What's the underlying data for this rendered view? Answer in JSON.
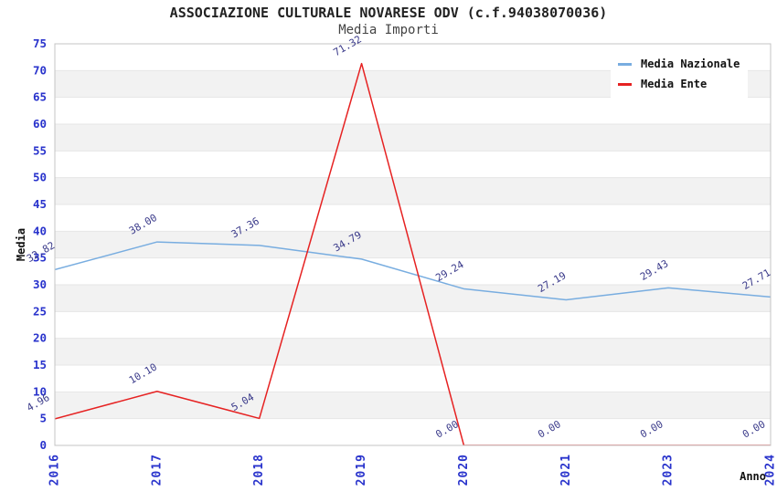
{
  "header": {
    "title": "ASSOCIAZIONE CULTURALE NOVARESE ODV (c.f.94038070036)",
    "subtitle": "Media Importi"
  },
  "chart_data": {
    "type": "line",
    "categories": [
      "2016",
      "2017",
      "2018",
      "2019",
      "2020",
      "2021",
      "2023",
      "2024"
    ],
    "series": [
      {
        "name": "Media Nazionale",
        "color": "#78ade0",
        "values": [
          32.82,
          38.0,
          37.36,
          34.79,
          29.24,
          27.19,
          29.43,
          27.71
        ],
        "point_labels": [
          "32.82",
          "38.00",
          "37.36",
          "34.79",
          "29.24",
          "27.19",
          "29.43",
          "27.71"
        ]
      },
      {
        "name": "Media Ente",
        "color": "#e62222",
        "values": [
          4.96,
          10.1,
          5.04,
          71.32,
          0.0,
          0.0,
          0.0,
          0.0
        ],
        "point_labels": [
          "4.96",
          "10.10",
          "5.04",
          "71.32",
          "0.00",
          "0.00",
          "0.00",
          "0.00"
        ]
      }
    ],
    "title": "ASSOCIAZIONE CULTURALE NOVARESE ODV (c.f.94038070036)",
    "subtitle": "Media Importi",
    "xlabel": "Anno",
    "ylabel": "Media",
    "ylim": [
      0,
      75
    ],
    "ytick_step": 5,
    "yticks": [
      0,
      5,
      10,
      15,
      20,
      25,
      30,
      35,
      40,
      45,
      50,
      55,
      60,
      65,
      70,
      75
    ],
    "grid": "horizontal-alternating-bands",
    "legend_position": "top-right"
  },
  "colors": {
    "tick_label": "#2933cc",
    "data_label": "#3a3a8a",
    "axis_title": "#111111",
    "band_gray": "#f2f2f2",
    "band_white": "#ffffff",
    "gridline": "#e6e6e6",
    "frame": "#c4c4c4",
    "background": "#ffffff"
  }
}
